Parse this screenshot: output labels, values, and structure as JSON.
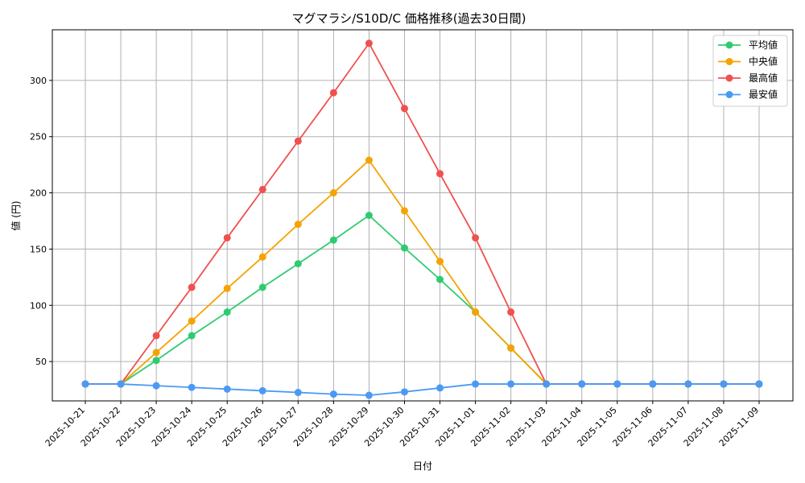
{
  "chart_data": {
    "type": "line",
    "title": "マグマラシ/S10D/C 価格推移(過去30日間)",
    "xlabel": "日付",
    "ylabel": "値 (円)",
    "categories": [
      "2025-10-21",
      "2025-10-22",
      "2025-10-23",
      "2025-10-24",
      "2025-10-25",
      "2025-10-26",
      "2025-10-27",
      "2025-10-28",
      "2025-10-29",
      "2025-10-30",
      "2025-10-31",
      "2025-11-01",
      "2025-11-02",
      "2025-11-03",
      "2025-11-04",
      "2025-11-05",
      "2025-11-06",
      "2025-11-07",
      "2025-11-08",
      "2025-11-09"
    ],
    "ylim": [
      15,
      345
    ],
    "yticks": [
      50,
      100,
      150,
      200,
      250,
      300
    ],
    "grid": true,
    "legend_position": "top-right",
    "series": [
      {
        "name": "平均値",
        "color": "#2ecc71",
        "values": [
          30,
          30,
          51,
          73,
          94,
          116,
          137,
          158,
          180,
          151,
          123,
          94,
          62,
          30,
          30,
          30,
          30,
          30,
          30,
          30
        ]
      },
      {
        "name": "中央値",
        "color": "#f5a300",
        "values": [
          30,
          30,
          58,
          86,
          115,
          143,
          172,
          200,
          229,
          184,
          139,
          94,
          62,
          30,
          30,
          30,
          30,
          30,
          30,
          30
        ]
      },
      {
        "name": "最高値",
        "color": "#f05050",
        "values": [
          30,
          30,
          73,
          116,
          160,
          203,
          246,
          289,
          333,
          275,
          217,
          160,
          94,
          30,
          30,
          30,
          30,
          30,
          30,
          30
        ]
      },
      {
        "name": "最安値",
        "color": "#4a9af5",
        "values": [
          30,
          30,
          28.5,
          27,
          25.5,
          24,
          22.5,
          21,
          20,
          23,
          26.5,
          30,
          30,
          30,
          30,
          30,
          30,
          30,
          30,
          30
        ]
      }
    ]
  }
}
